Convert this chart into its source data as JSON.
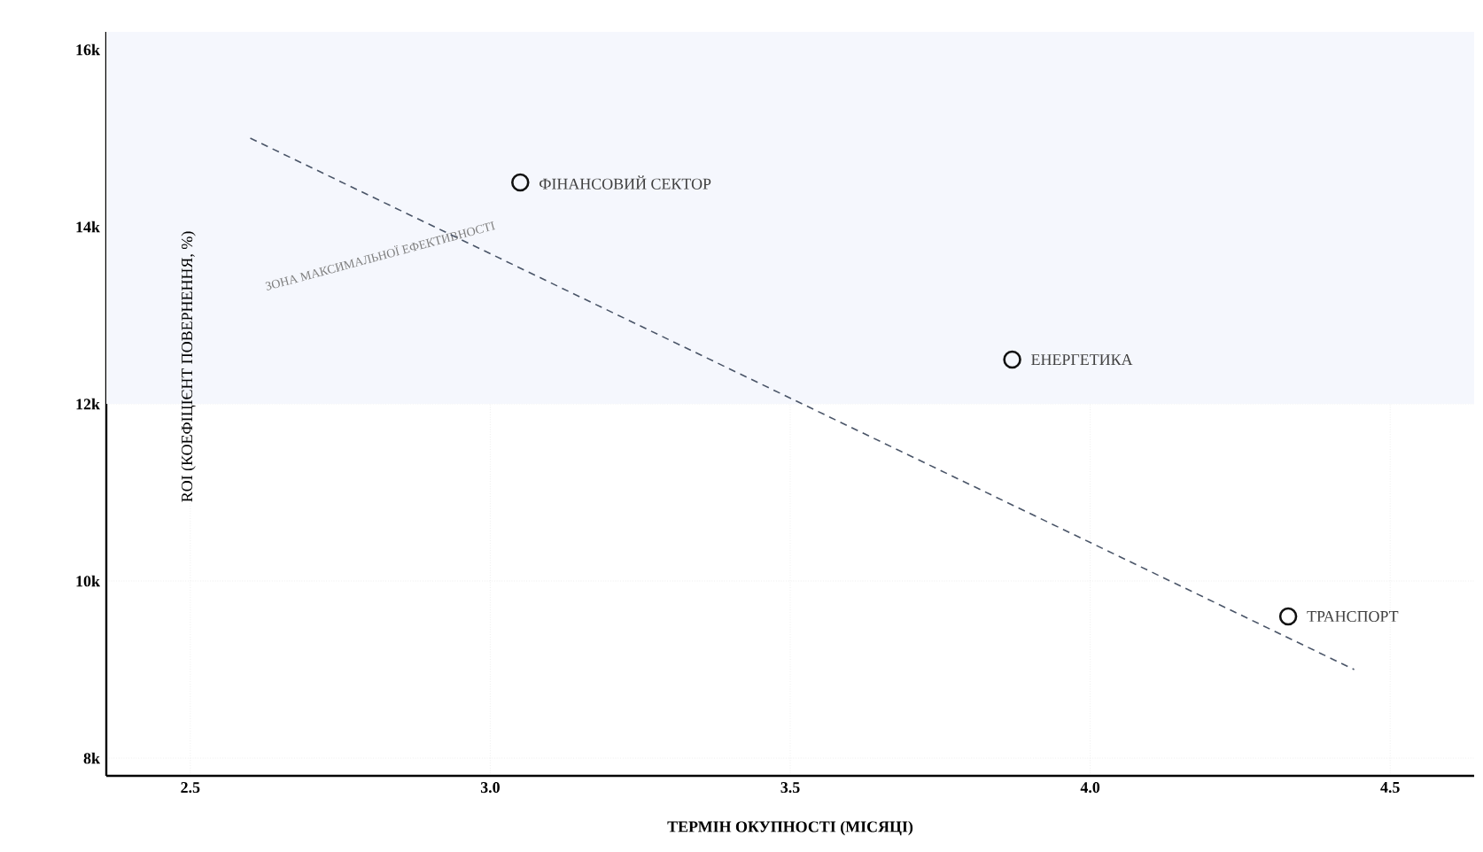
{
  "chart_data": {
    "type": "scatter",
    "xlabel": "ТЕРМІН ОКУПНОСТІ (МІСЯЦІ)",
    "ylabel": "ROI (КОЕФІЦІЄНТ ПОВЕРНЕННЯ, %)",
    "xlim": [
      2.36,
      4.64
    ],
    "ylim": [
      7800,
      16200
    ],
    "xticks": [
      2.5,
      {
        "value": 3,
        "label": "3.0"
      },
      3.5,
      {
        "value": 4,
        "label": "4.0"
      },
      4.5
    ],
    "yticks": [
      {
        "value": 8000,
        "label": "8k"
      },
      {
        "value": 10000,
        "label": "10k"
      },
      {
        "value": 12000,
        "label": "12k"
      },
      {
        "value": 14000,
        "label": "14k"
      },
      {
        "value": 16000,
        "label": "16k"
      }
    ],
    "grid": true,
    "marker": "circle",
    "series": [
      {
        "color": "#111111",
        "x": [
          3.05,
          3.87,
          4.33
        ],
        "values": [
          14500,
          12500,
          9600
        ]
      },
      {
        "type": "line",
        "color": "#4a5568",
        "line_style": "dashed",
        "marker": "none",
        "x": [
          2.6,
          4.44
        ],
        "values": [
          15000,
          9000
        ]
      }
    ],
    "bands": [
      {
        "axis": "y",
        "from": 12000,
        "to": 16200,
        "color": "#f5f7fd",
        "label": "ЗОНА МАКСИМАЛЬНОЇ ЕФЕКТИВНОСТІ"
      }
    ],
    "annotations": [
      {
        "text": "ФІНАНСОВИЙ СЕКТОР",
        "x": 3.05,
        "y": 14500
      },
      {
        "text": "ЕНЕРГЕТИКА",
        "x": 3.87,
        "y": 12500
      },
      {
        "text": "ТРАНСПОРТ",
        "x": 4.33,
        "y": 9600
      }
    ]
  }
}
